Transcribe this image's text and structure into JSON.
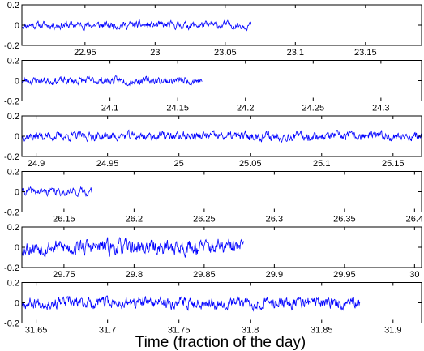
{
  "figure": {
    "xlabel": "Time (fraction of the day)"
  },
  "colors": {
    "line": "#0000ff",
    "axis": "#000000",
    "background": "#ffffff"
  },
  "chart_data": [
    {
      "type": "line",
      "xlim": [
        22.905,
        23.19
      ],
      "ylim": [
        -0.2,
        0.2
      ],
      "xticks": [
        22.95,
        23,
        23.05,
        23.1,
        23.15
      ],
      "xtick_labels": [
        "22.95",
        "23",
        "23.05",
        "23.1",
        "23.15"
      ],
      "yticks": [
        -0.2,
        0,
        0.2
      ],
      "ytick_labels": [
        "-0.2",
        "0",
        "0.2"
      ],
      "grid": false,
      "series": [
        {
          "x_start": 22.905,
          "x_end": 23.068,
          "center": 0.0,
          "noise": 0.03,
          "seed": 11
        }
      ]
    },
    {
      "type": "line",
      "xlim": [
        24.035,
        24.33
      ],
      "ylim": [
        -0.2,
        0.2
      ],
      "xticks": [
        24.1,
        24.15,
        24.2,
        24.25,
        24.3
      ],
      "xtick_labels": [
        "24.1",
        "24.15",
        "24.2",
        "24.25",
        "24.3"
      ],
      "yticks": [
        -0.2,
        0,
        0.2
      ],
      "ytick_labels": [
        "-0.2",
        "0",
        "0.2"
      ],
      "grid": false,
      "series": [
        {
          "x_start": 24.035,
          "x_end": 24.168,
          "center": 0.0,
          "noise": 0.03,
          "seed": 23
        }
      ]
    },
    {
      "type": "line",
      "xlim": [
        24.89,
        25.17
      ],
      "ylim": [
        -0.2,
        0.2
      ],
      "xticks": [
        24.9,
        24.95,
        25,
        25.05,
        25.1,
        25.15
      ],
      "xtick_labels": [
        "24.9",
        "24.95",
        "25",
        "25.05",
        "25.1",
        "25.15"
      ],
      "yticks": [
        -0.2,
        0,
        0.2
      ],
      "ytick_labels": [
        "-0.2",
        "0",
        "0.2"
      ],
      "grid": false,
      "series": [
        {
          "x_start": 24.89,
          "x_end": 25.17,
          "center": 0.0,
          "noise": 0.035,
          "seed": 37
        }
      ]
    },
    {
      "type": "line",
      "xlim": [
        26.12,
        26.405
      ],
      "ylim": [
        -0.2,
        0.2
      ],
      "xticks": [
        26.15,
        26.2,
        26.25,
        26.3,
        26.35,
        26.4
      ],
      "xtick_labels": [
        "26.15",
        "26.2",
        "26.25",
        "26.3",
        "26.35",
        "26.4"
      ],
      "yticks": [
        -0.2,
        0,
        0.2
      ],
      "ytick_labels": [
        "-0.2",
        "0",
        "0.2"
      ],
      "grid": false,
      "series": [
        {
          "x_start": 26.12,
          "x_end": 26.17,
          "center": 0.0,
          "noise": 0.03,
          "seed": 41
        }
      ]
    },
    {
      "type": "line",
      "xlim": [
        29.72,
        30.005
      ],
      "ylim": [
        -0.2,
        0.2
      ],
      "xticks": [
        29.75,
        29.8,
        29.85,
        29.9,
        29.95,
        30
      ],
      "xtick_labels": [
        "29.75",
        "29.8",
        "29.85",
        "29.9",
        "29.95",
        "30"
      ],
      "yticks": [
        -0.2,
        0,
        0.2
      ],
      "ytick_labels": [
        "-0.2",
        "0",
        "0.2"
      ],
      "grid": false,
      "series": [
        {
          "x_start": 29.72,
          "x_end": 29.878,
          "center": 0.0,
          "noise": 0.06,
          "seed": 53
        }
      ]
    },
    {
      "type": "line",
      "xlim": [
        31.64,
        31.92
      ],
      "ylim": [
        -0.2,
        0.2
      ],
      "xticks": [
        31.65,
        31.7,
        31.75,
        31.8,
        31.85,
        31.9
      ],
      "xtick_labels": [
        "31.65",
        "31.7",
        "31.75",
        "31.8",
        "31.85",
        "31.9"
      ],
      "yticks": [
        -0.2,
        0,
        0.2
      ],
      "ytick_labels": [
        "-0.2",
        "0",
        "0.2"
      ],
      "grid": false,
      "series": [
        {
          "x_start": 31.64,
          "x_end": 31.877,
          "center": 0.0,
          "noise": 0.045,
          "seed": 67
        }
      ]
    }
  ]
}
